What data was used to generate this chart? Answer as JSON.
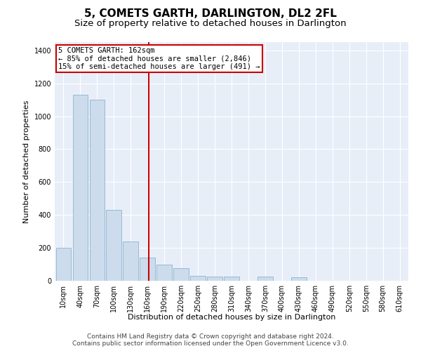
{
  "title": "5, COMETS GARTH, DARLINGTON, DL2 2FL",
  "subtitle": "Size of property relative to detached houses in Darlington",
  "xlabel": "Distribution of detached houses by size in Darlington",
  "ylabel": "Number of detached properties",
  "bar_color": "#ccdcec",
  "bar_edge_color": "#7aaaca",
  "background_color": "#e8eef8",
  "grid_color": "#ffffff",
  "annotation_line_color": "#cc0000",
  "annotation_box_text": [
    "5 COMETS GARTH: 162sqm",
    "← 85% of detached houses are smaller (2,846)",
    "15% of semi-detached houses are larger (491) →"
  ],
  "property_size": 162,
  "categories": [
    10,
    40,
    70,
    100,
    130,
    160,
    190,
    220,
    250,
    280,
    310,
    340,
    370,
    400,
    430,
    460,
    490,
    520,
    550,
    580,
    610
  ],
  "values": [
    200,
    1130,
    1100,
    430,
    240,
    140,
    100,
    75,
    30,
    25,
    25,
    0,
    25,
    0,
    20,
    0,
    0,
    0,
    0,
    0,
    0
  ],
  "ylim": [
    0,
    1450
  ],
  "yticks": [
    0,
    200,
    400,
    600,
    800,
    1000,
    1200,
    1400
  ],
  "footer_line1": "Contains HM Land Registry data © Crown copyright and database right 2024.",
  "footer_line2": "Contains public sector information licensed under the Open Government Licence v3.0.",
  "title_fontsize": 11,
  "subtitle_fontsize": 9.5,
  "tick_fontsize": 7,
  "label_fontsize": 8,
  "footer_fontsize": 6.5,
  "annotation_fontsize": 7.5
}
